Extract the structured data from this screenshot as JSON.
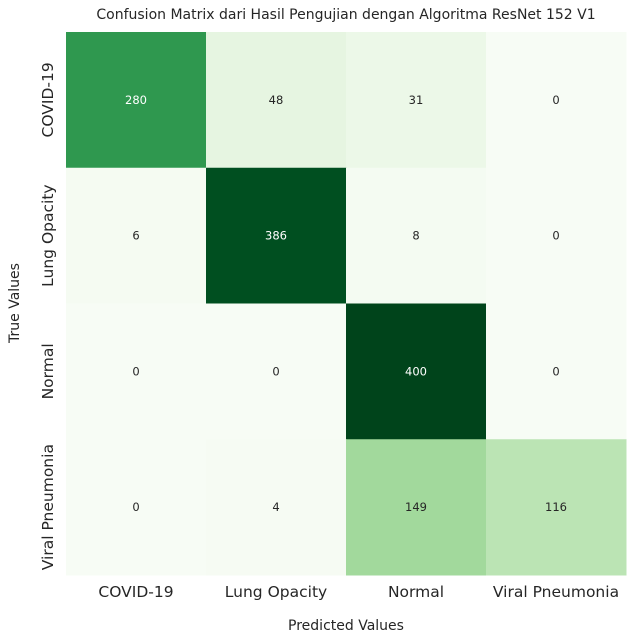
{
  "chart_data": {
    "type": "heatmap",
    "title": "Confusion Matrix dari Hasil Pengujian dengan Algoritma ResNet 152 V1",
    "xlabel": "Predicted Values",
    "ylabel": "True Values",
    "x_categories": [
      "COVID-19",
      "Lung Opacity",
      "Normal",
      "Viral Pneumonia"
    ],
    "y_categories": [
      "COVID-19",
      "Lung Opacity",
      "Normal",
      "Viral Pneumonia"
    ],
    "values": [
      [
        280,
        48,
        31,
        0
      ],
      [
        6,
        386,
        8,
        0
      ],
      [
        0,
        0,
        400,
        0
      ],
      [
        0,
        4,
        149,
        116
      ]
    ],
    "colormap": "Greens",
    "vmin": 0,
    "vmax": 400,
    "colorbar": false,
    "grid": false
  }
}
